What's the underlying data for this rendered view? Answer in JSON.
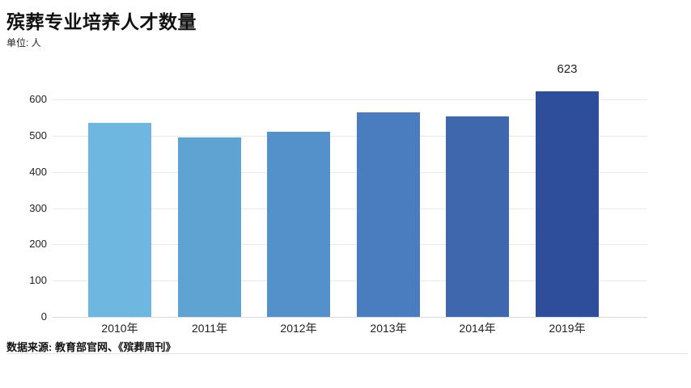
{
  "header": {
    "title": "殡葬专业培养人才数量",
    "unit": "单位: 人"
  },
  "footer": {
    "source": "数据来源: 教育部官网、《殡葬周刊》"
  },
  "chart_data": {
    "type": "bar",
    "title": "殡葬专业培养人才数量",
    "xlabel": "",
    "ylabel": "单位: 人",
    "categories": [
      "2010年",
      "2011年",
      "2012年",
      "2013年",
      "2014年",
      "2019年"
    ],
    "values": [
      536,
      495,
      510,
      565,
      553,
      623
    ],
    "data_labels": [
      "",
      "",
      "",
      "",
      "",
      "623"
    ],
    "bar_colors": [
      "#6db7e0",
      "#5fa3d3",
      "#5490c9",
      "#4a7cc0",
      "#3e67ae",
      "#2e4e9c"
    ],
    "ylim": [
      0,
      650
    ],
    "yticks": [
      0,
      100,
      200,
      300,
      400,
      500,
      600
    ],
    "ytick_labels": [
      "0",
      "100",
      "200",
      "300",
      "400",
      "500",
      "600"
    ],
    "grid": true,
    "gridline_color": "#e9e9e9",
    "baseline_color": "#d9d9d9",
    "legend": "none",
    "background_color": "#ffffff"
  }
}
